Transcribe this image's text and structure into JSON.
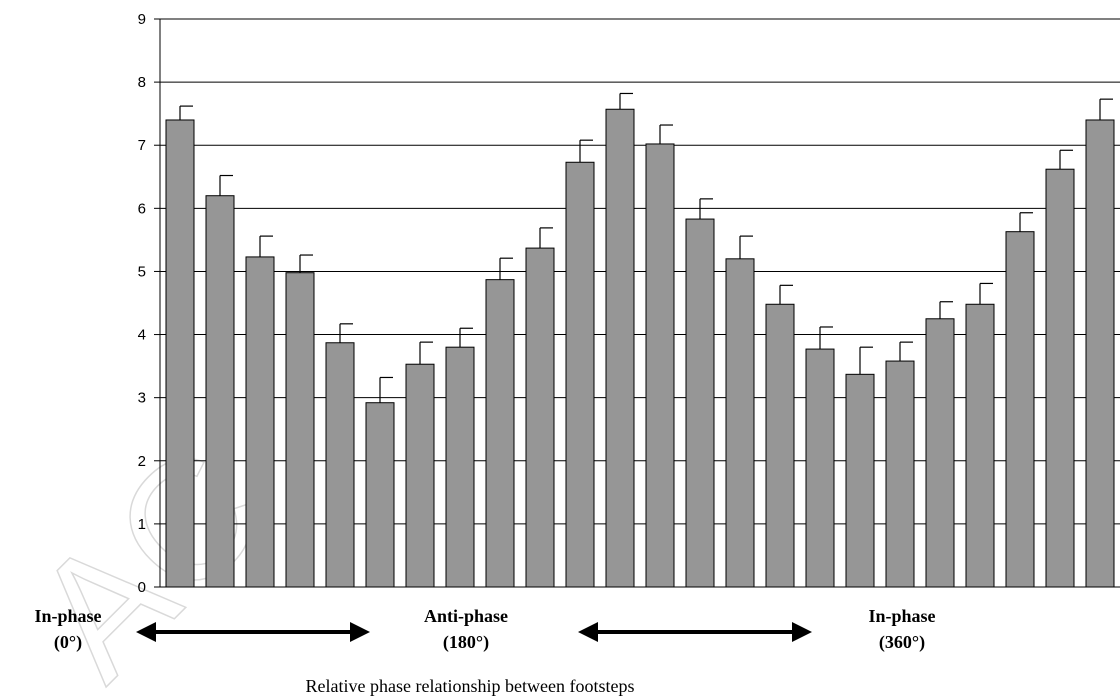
{
  "chart_data": {
    "type": "bar",
    "title": "",
    "xlabel": "Relative phase relationship between footsteps",
    "ylabel": "",
    "ylim": [
      0,
      9
    ],
    "yticks": [
      0,
      1,
      2,
      3,
      4,
      5,
      6,
      7,
      8,
      9
    ],
    "grid": true,
    "bar_color": "#969696",
    "series": [
      {
        "values": [
          7.4,
          6.2,
          5.23,
          4.98,
          3.87,
          2.92,
          3.53,
          3.8,
          4.87,
          5.37,
          6.73,
          7.57,
          7.02,
          5.83,
          5.2,
          4.48,
          3.77,
          3.37,
          3.58,
          4.25,
          4.48,
          5.63,
          6.62,
          7.4
        ],
        "error": [
          0.22,
          0.32,
          0.33,
          0.28,
          0.3,
          0.4,
          0.35,
          0.3,
          0.34,
          0.32,
          0.35,
          0.25,
          0.3,
          0.32,
          0.36,
          0.3,
          0.35,
          0.43,
          0.3,
          0.27,
          0.33,
          0.3,
          0.3,
          0.33
        ]
      }
    ],
    "phase_labels": [
      {
        "line1": "In-phase",
        "line2": "(0°)"
      },
      {
        "line1": "Anti-phase",
        "line2": "(180°)"
      },
      {
        "line1": "In-phase",
        "line2": "(360°)"
      }
    ]
  },
  "watermark": "AC"
}
